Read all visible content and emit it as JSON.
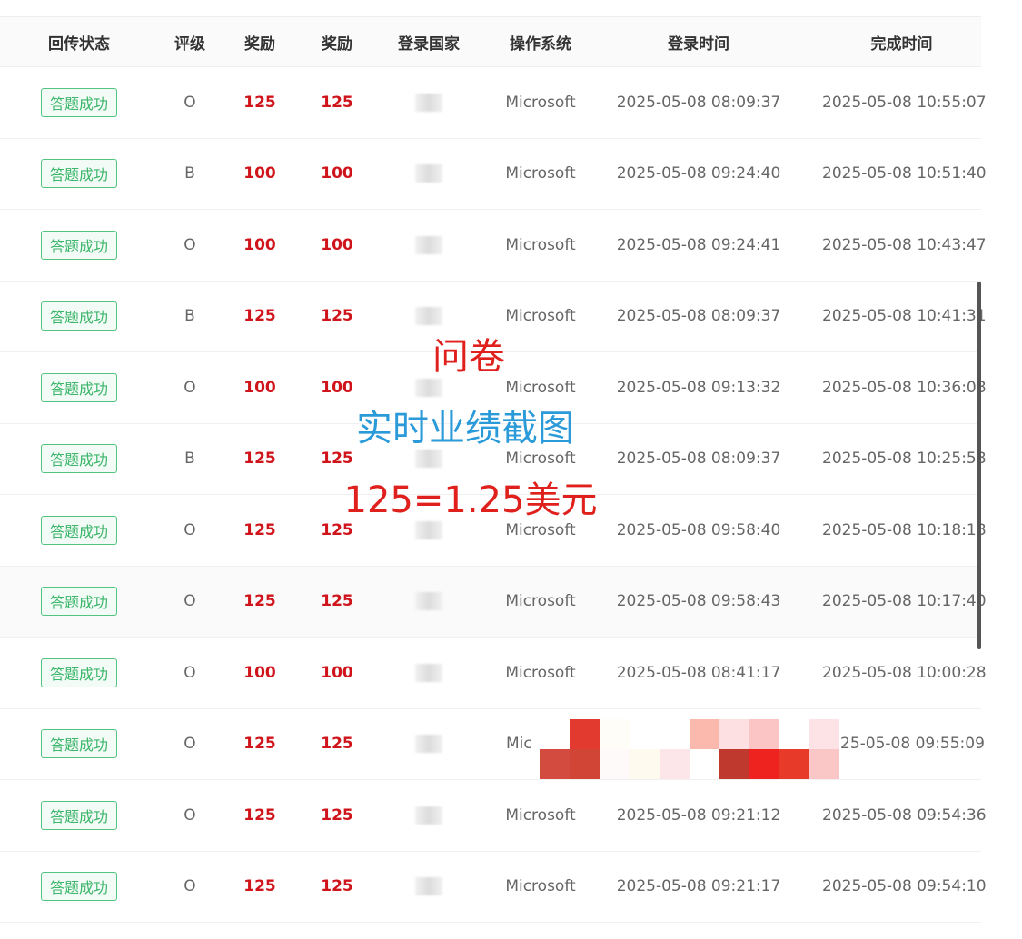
{
  "table": {
    "headers": [
      "回传状态",
      "评级",
      "奖励",
      "奖励",
      "登录国家",
      "操作系统",
      "登录时间",
      "完成时间"
    ],
    "rows": [
      {
        "status": "答题成功",
        "grade": "O",
        "reward1": "125",
        "reward2": "125",
        "os": "Microsoft",
        "login": "2025-05-08 08:09:37",
        "done": "2025-05-08 10:55:07"
      },
      {
        "status": "答题成功",
        "grade": "B",
        "reward1": "100",
        "reward2": "100",
        "os": "Microsoft",
        "login": "2025-05-08 09:24:40",
        "done": "2025-05-08 10:51:40"
      },
      {
        "status": "答题成功",
        "grade": "O",
        "reward1": "100",
        "reward2": "100",
        "os": "Microsoft",
        "login": "2025-05-08 09:24:41",
        "done": "2025-05-08 10:43:47"
      },
      {
        "status": "答题成功",
        "grade": "B",
        "reward1": "125",
        "reward2": "125",
        "os": "Microsoft",
        "login": "2025-05-08 08:09:37",
        "done": "2025-05-08 10:41:31"
      },
      {
        "status": "答题成功",
        "grade": "O",
        "reward1": "100",
        "reward2": "100",
        "os": "Microsoft",
        "login": "2025-05-08 09:13:32",
        "done": "2025-05-08 10:36:08"
      },
      {
        "status": "答题成功",
        "grade": "B",
        "reward1": "125",
        "reward2": "125",
        "os": "Microsoft",
        "login": "2025-05-08 08:09:37",
        "done": "2025-05-08 10:25:58"
      },
      {
        "status": "答题成功",
        "grade": "O",
        "reward1": "125",
        "reward2": "125",
        "os": "Microsoft",
        "login": "2025-05-08 09:58:40",
        "done": "2025-05-08 10:18:18"
      },
      {
        "status": "答题成功",
        "grade": "O",
        "reward1": "125",
        "reward2": "125",
        "os": "Microsoft",
        "login": "2025-05-08 09:58:43",
        "done": "2025-05-08 10:17:40"
      },
      {
        "status": "答题成功",
        "grade": "O",
        "reward1": "100",
        "reward2": "100",
        "os": "Microsoft",
        "login": "2025-05-08 08:41:17",
        "done": "2025-05-08 10:00:28"
      },
      {
        "status": "答题成功",
        "grade": "O",
        "reward1": "125",
        "reward2": "125",
        "os": "Mic",
        "login": "",
        "done": "25-05-08 09:55:09"
      },
      {
        "status": "答题成功",
        "grade": "O",
        "reward1": "125",
        "reward2": "125",
        "os": "Microsoft",
        "login": "2025-05-08 09:21:12",
        "done": "2025-05-08 09:54:36"
      },
      {
        "status": "答题成功",
        "grade": "O",
        "reward1": "125",
        "reward2": "125",
        "os": "Microsoft",
        "login": "2025-05-08 09:21:17",
        "done": "2025-05-08 09:54:10"
      }
    ]
  },
  "overlay": {
    "line1": "问卷",
    "line2": "实时业绩截图",
    "line3": "125=1.25美元"
  },
  "colors": {
    "reward": "#d0141b",
    "status": "#3cb66b",
    "overlay_red": "#e0201c",
    "overlay_blue": "#2a9ad8"
  }
}
